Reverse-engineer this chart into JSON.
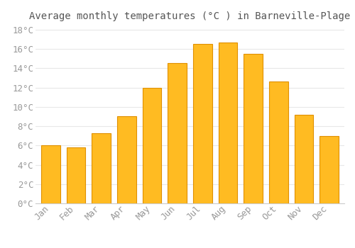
{
  "title": "Average monthly temperatures (°C ) in Barneville-Plage",
  "months": [
    "Jan",
    "Feb",
    "Mar",
    "Apr",
    "May",
    "Jun",
    "Jul",
    "Aug",
    "Sep",
    "Oct",
    "Nov",
    "Dec"
  ],
  "values": [
    6.0,
    5.8,
    7.3,
    9.0,
    12.0,
    14.5,
    16.5,
    16.7,
    15.5,
    12.6,
    9.2,
    7.0
  ],
  "bar_color": "#FFBB22",
  "bar_edge_color": "#E09000",
  "background_color": "#ffffff",
  "grid_color": "#e8e8e8",
  "tick_label_color": "#999999",
  "title_color": "#555555",
  "ylim": [
    0,
    18.5
  ],
  "yticks": [
    0,
    2,
    4,
    6,
    8,
    10,
    12,
    14,
    16,
    18
  ],
  "ylabel_suffix": "°C",
  "title_fontsize": 10,
  "tick_fontsize": 9,
  "font_family": "monospace",
  "bar_width": 0.75
}
